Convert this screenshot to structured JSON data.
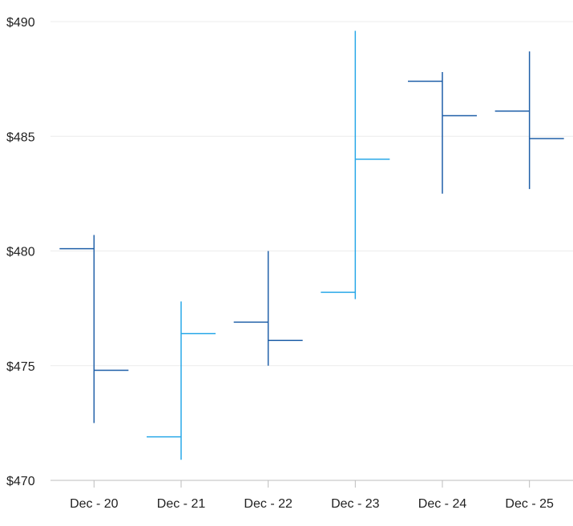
{
  "chart_data": {
    "type": "ohlc",
    "categories": [
      "Dec - 20",
      "Dec - 21",
      "Dec - 22",
      "Dec - 23",
      "Dec - 24",
      "Dec - 25"
    ],
    "open": [
      480.1,
      471.9,
      476.9,
      478.2,
      487.4,
      486.1
    ],
    "high": [
      480.7,
      477.8,
      480.0,
      489.6,
      487.8,
      488.7
    ],
    "low": [
      472.5,
      470.9,
      475.0,
      477.9,
      482.5,
      482.7
    ],
    "close": [
      474.8,
      476.4,
      476.1,
      484.0,
      485.9,
      484.9
    ],
    "direction": [
      "down",
      "up",
      "down",
      "up",
      "down",
      "down"
    ],
    "ylim": [
      470,
      490
    ],
    "yticks": [
      470,
      475,
      480,
      485,
      490
    ],
    "ytick_labels": [
      "$470",
      "$475",
      "$480",
      "$485",
      "$490"
    ],
    "grid": true,
    "title": "",
    "xlabel": "",
    "ylabel": "",
    "colors": {
      "up": "#29a8e8",
      "down": "#1f5fa8",
      "grid": "#ececec",
      "axis": "#bdbdbd"
    }
  }
}
